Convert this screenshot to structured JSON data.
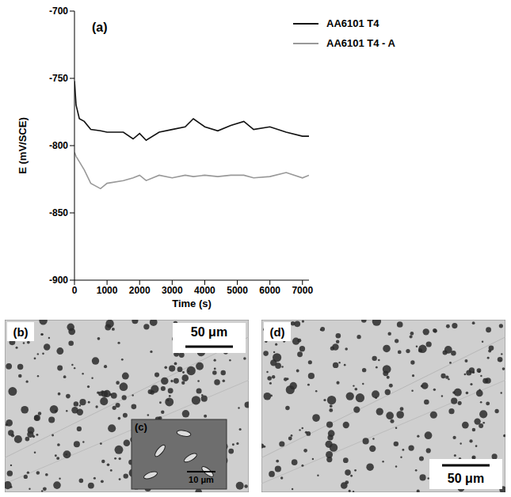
{
  "chart_data": {
    "type": "line",
    "panel": "(a)",
    "x_label": "Time (s)",
    "y_label": "E (mV/SCE)",
    "x": [
      0,
      50,
      150,
      300,
      500,
      800,
      1000,
      1500,
      1800,
      2000,
      2200,
      2600,
      3000,
      3400,
      3650,
      4000,
      4400,
      4800,
      5200,
      5500,
      6000,
      6500,
      7000,
      7200
    ],
    "series": [
      {
        "name": "AA6101 T4",
        "color": "#111111",
        "values": [
          -752,
          -770,
          -780,
          -782,
          -788,
          -789,
          -790,
          -790,
          -795,
          -791,
          -796,
          -790,
          -788,
          -786,
          -780,
          -786,
          -789,
          -785,
          -782,
          -788,
          -786,
          -790,
          -793,
          -793
        ]
      },
      {
        "name": "AA6101 T4 - A",
        "color": "#999999",
        "values": [
          -805,
          -808,
          -812,
          -818,
          -828,
          -832,
          -828,
          -826,
          -824,
          -822,
          -826,
          -822,
          -824,
          -822,
          -823,
          -822,
          -823,
          -822,
          -822,
          -824,
          -823,
          -820,
          -824,
          -822
        ]
      }
    ],
    "xlim": [
      0,
      7200
    ],
    "xticks": [
      0,
      1000,
      2000,
      3000,
      4000,
      5000,
      6000,
      7000
    ],
    "ylim": [
      -900,
      -700
    ],
    "yticks": [
      -900,
      -850,
      -800,
      -750,
      -700
    ],
    "grid": false,
    "legend": "upper right",
    "marker": "none",
    "line_style": "solid"
  },
  "images": [
    {
      "label": "(b)",
      "scale_bar": "50 μm",
      "inset": {
        "label": "(c)",
        "scale_bar": "10 μm"
      }
    },
    {
      "label": "(d)",
      "scale_bar": "50 μm"
    }
  ]
}
